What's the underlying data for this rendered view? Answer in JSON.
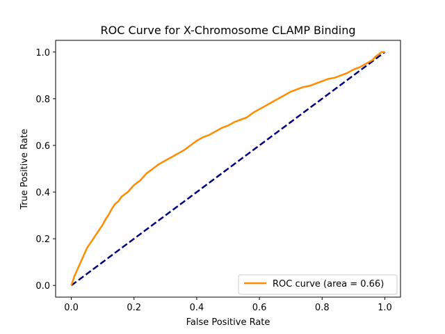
{
  "chart_data": {
    "type": "line",
    "title": "ROC Curve for X-Chromosome CLAMP Binding",
    "xlabel": "False Positive Rate",
    "ylabel": "True Positive Rate",
    "xlim": [
      -0.05,
      1.05
    ],
    "ylim": [
      -0.05,
      1.05
    ],
    "x_ticks": [
      0.0,
      0.2,
      0.4,
      0.6,
      0.8,
      1.0
    ],
    "y_ticks": [
      0.0,
      0.2,
      0.4,
      0.6,
      0.8,
      1.0
    ],
    "x_tick_labels": [
      "0.0",
      "0.2",
      "0.4",
      "0.6",
      "0.8",
      "1.0"
    ],
    "y_tick_labels": [
      "0.0",
      "0.2",
      "0.4",
      "0.6",
      "0.8",
      "1.0"
    ],
    "grid": false,
    "legend_position": "lower-right",
    "series": [
      {
        "name": "ROC curve (area = 0.66)",
        "color": "#ff8c00",
        "style": "solid",
        "x": [
          0.0,
          0.005,
          0.01,
          0.02,
          0.03,
          0.04,
          0.05,
          0.06,
          0.07,
          0.08,
          0.09,
          0.1,
          0.11,
          0.12,
          0.13,
          0.14,
          0.15,
          0.16,
          0.18,
          0.2,
          0.22,
          0.24,
          0.26,
          0.28,
          0.3,
          0.32,
          0.34,
          0.36,
          0.38,
          0.4,
          0.42,
          0.44,
          0.46,
          0.48,
          0.5,
          0.52,
          0.54,
          0.56,
          0.58,
          0.6,
          0.62,
          0.64,
          0.66,
          0.68,
          0.7,
          0.72,
          0.74,
          0.76,
          0.78,
          0.8,
          0.82,
          0.84,
          0.86,
          0.88,
          0.9,
          0.92,
          0.94,
          0.96,
          0.97,
          0.98,
          0.99,
          1.0
        ],
        "y": [
          0.0,
          0.02,
          0.04,
          0.07,
          0.1,
          0.13,
          0.16,
          0.18,
          0.2,
          0.22,
          0.24,
          0.26,
          0.285,
          0.305,
          0.33,
          0.35,
          0.36,
          0.38,
          0.4,
          0.43,
          0.45,
          0.48,
          0.5,
          0.52,
          0.535,
          0.55,
          0.565,
          0.58,
          0.6,
          0.62,
          0.635,
          0.645,
          0.66,
          0.675,
          0.685,
          0.7,
          0.71,
          0.72,
          0.74,
          0.755,
          0.77,
          0.785,
          0.8,
          0.815,
          0.83,
          0.84,
          0.85,
          0.855,
          0.865,
          0.875,
          0.885,
          0.89,
          0.9,
          0.91,
          0.925,
          0.935,
          0.95,
          0.965,
          0.98,
          0.99,
          1.0,
          1.0
        ]
      },
      {
        "name": "",
        "color": "#000080",
        "style": "dashed",
        "x": [
          0.0,
          1.0
        ],
        "y": [
          0.0,
          1.0
        ]
      }
    ]
  }
}
